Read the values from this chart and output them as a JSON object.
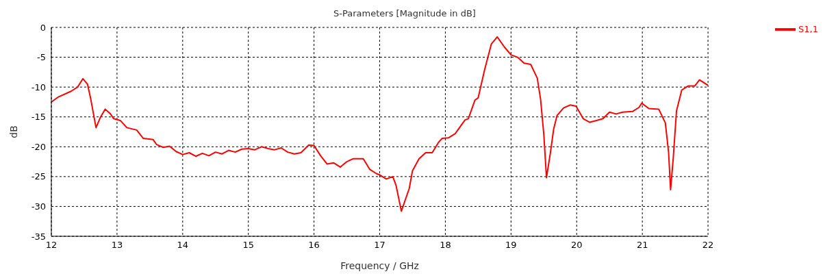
{
  "chart_data": {
    "type": "line",
    "title": "S-Parameters [Magnitude in dB]",
    "xlabel": "Frequency / GHz",
    "ylabel": "dB",
    "xlim": [
      12,
      22
    ],
    "xticks": [
      12,
      13,
      14,
      15,
      16,
      17,
      18,
      19,
      20,
      21,
      22
    ],
    "ylim": [
      -35,
      0
    ],
    "yticks": [
      -35,
      -30,
      -25,
      -20,
      -15,
      -10,
      -5,
      0
    ],
    "grid": true,
    "legend": "top right",
    "marker": "none",
    "line_style": "solid",
    "series": [
      {
        "name": "S1,1",
        "color": "#ff0000",
        "x": [
          12.0,
          12.1,
          12.3,
          12.4,
          12.48,
          12.55,
          12.6,
          12.68,
          12.75,
          12.82,
          12.9,
          12.95,
          13.05,
          13.15,
          13.3,
          13.4,
          13.55,
          13.6,
          13.7,
          13.8,
          13.9,
          14.0,
          14.1,
          14.2,
          14.3,
          14.4,
          14.5,
          14.6,
          14.7,
          14.8,
          14.9,
          15.0,
          15.1,
          15.2,
          15.3,
          15.4,
          15.5,
          15.6,
          15.7,
          15.8,
          15.92,
          16.0,
          16.1,
          16.2,
          16.3,
          16.4,
          16.5,
          16.6,
          16.75,
          16.85,
          16.95,
          17.0,
          17.1,
          17.2,
          17.25,
          17.33,
          17.45,
          17.5,
          17.6,
          17.7,
          17.8,
          17.9,
          17.95,
          18.05,
          18.15,
          18.3,
          18.35,
          18.45,
          18.5,
          18.6,
          18.7,
          18.79,
          18.9,
          19.0,
          19.1,
          19.2,
          19.3,
          19.4,
          19.45,
          19.5,
          19.54,
          19.6,
          19.65,
          19.7,
          19.8,
          19.9,
          19.99,
          20.1,
          20.2,
          20.3,
          20.4,
          20.5,
          20.6,
          20.7,
          20.85,
          20.95,
          20.99,
          21.1,
          21.25,
          21.35,
          21.4,
          21.43,
          21.47,
          21.52,
          21.6,
          21.7,
          21.8,
          21.87,
          22.0
        ],
        "values": [
          -12.5,
          -11.7,
          -10.7,
          -10.0,
          -8.6,
          -9.5,
          -12.0,
          -16.8,
          -15.0,
          -13.7,
          -14.5,
          -15.3,
          -15.6,
          -16.8,
          -17.2,
          -18.6,
          -18.8,
          -19.6,
          -20.1,
          -19.9,
          -20.8,
          -21.3,
          -21.0,
          -21.6,
          -21.1,
          -21.5,
          -20.9,
          -21.2,
          -20.6,
          -20.9,
          -20.4,
          -20.3,
          -20.5,
          -20.0,
          -20.3,
          -20.5,
          -20.2,
          -20.9,
          -21.2,
          -21.0,
          -19.7,
          -19.8,
          -21.5,
          -22.9,
          -22.7,
          -23.4,
          -22.5,
          -22.0,
          -22.0,
          -23.8,
          -24.5,
          -24.7,
          -25.4,
          -25.0,
          -26.5,
          -30.8,
          -27.0,
          -24.0,
          -22.0,
          -21.0,
          -21.0,
          -19.2,
          -18.6,
          -18.5,
          -17.8,
          -15.5,
          -15.3,
          -12.2,
          -11.8,
          -7.0,
          -2.8,
          -1.6,
          -3.3,
          -4.6,
          -5.0,
          -6.0,
          -6.2,
          -8.5,
          -12.0,
          -18.0,
          -25.2,
          -21.0,
          -17.0,
          -14.8,
          -13.5,
          -13.0,
          -13.2,
          -15.3,
          -15.9,
          -15.6,
          -15.3,
          -14.2,
          -14.5,
          -14.2,
          -14.1,
          -13.4,
          -12.7,
          -13.6,
          -13.7,
          -16.0,
          -21.0,
          -27.2,
          -22.0,
          -14.0,
          -10.5,
          -9.8,
          -9.8,
          -8.8,
          -9.7
        ]
      }
    ]
  }
}
